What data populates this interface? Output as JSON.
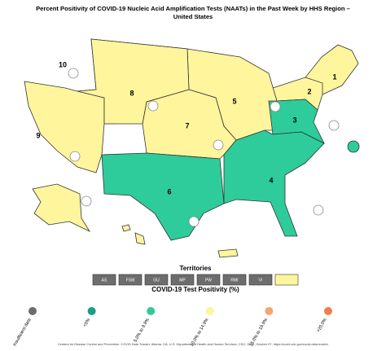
{
  "title": "Percent Positivity of COVID-19 Nucleic Acid Amplification Tests (NAATs) in the Past Week by HHS Region – United States",
  "regions": [
    {
      "label": "1",
      "color": "#fff59d"
    },
    {
      "label": "2",
      "color": "#fff59d"
    },
    {
      "label": "3",
      "color": "#2ecc9a"
    },
    {
      "label": "4",
      "color": "#2ecc9a"
    },
    {
      "label": "5",
      "color": "#fff59d"
    },
    {
      "label": "6",
      "color": "#2ecc9a"
    },
    {
      "label": "7",
      "color": "#fff59d"
    },
    {
      "label": "8",
      "color": "#fff59d"
    },
    {
      "label": "9",
      "color": "#fff59d"
    },
    {
      "label": "10",
      "color": "#fff59d"
    }
  ],
  "territories_title": "Territories",
  "territories": [
    {
      "label": "AS",
      "color": "#6d6d6d"
    },
    {
      "label": "FSM",
      "color": "#6d6d6d"
    },
    {
      "label": "GU",
      "color": "#6d6d6d"
    },
    {
      "label": "MP",
      "color": "#6d6d6d"
    },
    {
      "label": "PW",
      "color": "#6d6d6d"
    },
    {
      "label": "RMI",
      "color": "#6d6d6d"
    },
    {
      "label": "VI",
      "color": "#6d6d6d"
    },
    {
      "color": "#fff59d"
    }
  ],
  "legend_title": "COVID-19 Test Positivity (%)",
  "legend": [
    {
      "label": "Insufficient data",
      "color": "#6d6d6d"
    },
    {
      "label": "<5%",
      "color": "#1a9e8a"
    },
    {
      "label": "5.0% to 9.9%",
      "color": "#2ecc9a"
    },
    {
      "label": "10.0% to 14.9%",
      "color": "#fff59d"
    },
    {
      "label": "15.0% to 19.9%",
      "color": "#f4a66c"
    },
    {
      "label": ">20.0%",
      "color": "#f37e4b"
    }
  ],
  "footer": "Centers for Disease Control and Prevention. COVID Data Tracker. Atlanta, GA: U.S. Department of Health and Human Services, CDC; 2023, October 07. https://covid.cdc.gov/covid-data-tracker"
}
